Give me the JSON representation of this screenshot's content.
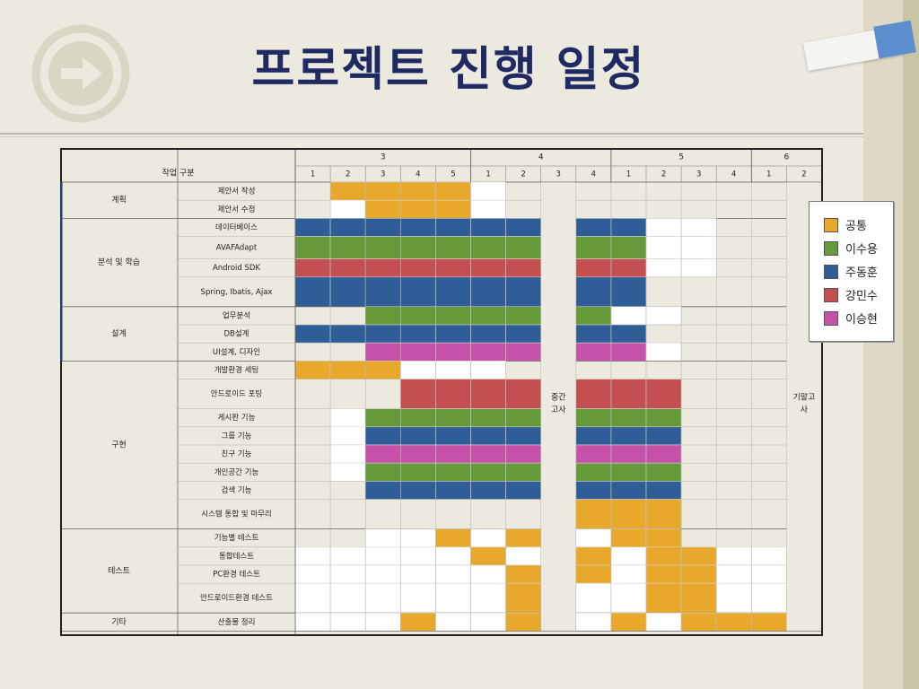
{
  "title": "프로젝트 진행 일정",
  "colors": {
    "공통": "#e8a82b",
    "이수용": "#66993a",
    "주동훈": "#2f5d97",
    "강민수": "#c44f51",
    "이승현": "#c552a8",
    "empty": "#ffffff",
    "header": "#ece9df"
  },
  "table": {
    "corner_header": "작업 구분",
    "months": [
      {
        "label": "3",
        "weeks": [
          "1",
          "2",
          "3",
          "4",
          "5"
        ]
      },
      {
        "label": "4",
        "weeks": [
          "1",
          "2",
          "3",
          "4"
        ]
      },
      {
        "label": "5",
        "weeks": [
          "1",
          "2",
          "3",
          "4"
        ]
      },
      {
        "label": "6",
        "weeks": [
          "1",
          "2"
        ]
      }
    ],
    "midterm_label": "중간\n고사",
    "final_label": "기말고\n사",
    "groups": [
      {
        "name": "계획",
        "tasks": [
          {
            "name": "제안서 작성",
            "cells": [
              "",
              "공통",
              "공통",
              "공통",
              "공통",
              "empty",
              "",
              null,
              "",
              "",
              "",
              "",
              "",
              "",
              null
            ]
          },
          {
            "name": "제안서 수정",
            "cells": [
              "",
              "empty",
              "공통",
              "공통",
              "공통",
              "empty",
              "",
              null,
              "",
              "",
              "",
              "",
              "",
              "",
              null
            ]
          }
        ]
      },
      {
        "name": "분석 및 학습",
        "tasks": [
          {
            "name": "데이터베이스",
            "cells": [
              "주동훈",
              "주동훈",
              "주동훈",
              "주동훈",
              "주동훈",
              "주동훈",
              "주동훈",
              null,
              "주동훈",
              "주동훈",
              "empty",
              "empty",
              "",
              "",
              null
            ]
          },
          {
            "name": "AVAFAdapt",
            "cells": [
              "이수용",
              "이수용",
              "이수용",
              "이수용",
              "이수용",
              "이수용",
              "이수용",
              null,
              "이수용",
              "이수용",
              "empty",
              "empty",
              "",
              "",
              null
            ]
          },
          {
            "name": "Android SDK",
            "cells": [
              "강민수",
              "강민수",
              "강민수",
              "강민수",
              "강민수",
              "강민수",
              "강민수",
              null,
              "강민수",
              "강민수",
              "empty",
              "empty",
              "",
              "",
              null
            ]
          },
          {
            "name": "Spring, Ibatis, Ajax",
            "cells": [
              "주동훈",
              "주동훈",
              "주동훈",
              "주동훈",
              "주동훈",
              "주동훈",
              "주동훈",
              null,
              "주동훈",
              "주동훈",
              "",
              "",
              "",
              "",
              null
            ]
          }
        ]
      },
      {
        "name": "설계",
        "tasks": [
          {
            "name": "업무분석",
            "cells": [
              "",
              "",
              "이수용",
              "이수용",
              "이수용",
              "이수용",
              "이수용",
              null,
              "이수용",
              "empty",
              "empty",
              "",
              "",
              "",
              null
            ]
          },
          {
            "name": "DB설계",
            "cells": [
              "주동훈",
              "주동훈",
              "주동훈",
              "주동훈",
              "주동훈",
              "주동훈",
              "주동훈",
              null,
              "주동훈",
              "주동훈",
              "",
              "",
              "",
              "",
              null
            ]
          },
          {
            "name": "UI설계, 디자인",
            "cells": [
              "",
              "",
              "이승현",
              "이승현",
              "이승현",
              "이승현",
              "이승현",
              null,
              "이승현",
              "이승현",
              "empty",
              "",
              "",
              "",
              null
            ]
          }
        ]
      },
      {
        "name": "구현",
        "tasks": [
          {
            "name": "개발환경 세팅",
            "cells": [
              "공통",
              "공통",
              "공통",
              "empty",
              "empty",
              "empty",
              "",
              null,
              "",
              "",
              "",
              "",
              "",
              "",
              null
            ]
          },
          {
            "name": "안드로이드 포팅",
            "cells": [
              "",
              "",
              "",
              "강민수",
              "강민수",
              "강민수",
              "강민수",
              null,
              "강민수",
              "강민수",
              "강민수",
              "",
              "",
              "",
              null
            ]
          },
          {
            "name": "게시판 기능",
            "cells": [
              "",
              "empty",
              "이수용",
              "이수용",
              "이수용",
              "이수용",
              "이수용",
              null,
              "이수용",
              "이수용",
              "이수용",
              "",
              "",
              "",
              null
            ]
          },
          {
            "name": "그룹 기능",
            "cells": [
              "",
              "empty",
              "주동훈",
              "주동훈",
              "주동훈",
              "주동훈",
              "주동훈",
              null,
              "주동훈",
              "주동훈",
              "주동훈",
              "",
              "",
              "",
              null
            ]
          },
          {
            "name": "친구 기능",
            "cells": [
              "",
              "empty",
              "이승현",
              "이승현",
              "이승현",
              "이승현",
              "이승현",
              null,
              "이승현",
              "이승현",
              "이승현",
              "",
              "",
              "",
              null
            ]
          },
          {
            "name": "개인공간 기능",
            "cells": [
              "",
              "empty",
              "이수용",
              "이수용",
              "이수용",
              "이수용",
              "이수용",
              null,
              "이수용",
              "이수용",
              "이수용",
              "",
              "",
              "",
              null
            ]
          },
          {
            "name": "검색 기능",
            "cells": [
              "",
              "",
              "주동훈",
              "주동훈",
              "주동훈",
              "주동훈",
              "주동훈",
              null,
              "주동훈",
              "주동훈",
              "주동훈",
              "",
              "",
              "",
              null
            ]
          },
          {
            "name": "시스템 통합 및 마무리",
            "cells": [
              "",
              "",
              "",
              "",
              "",
              "",
              "",
              null,
              "공통",
              "공통",
              "공통",
              "",
              "",
              "",
              null
            ]
          }
        ]
      },
      {
        "name": "테스트",
        "tasks": [
          {
            "name": "기능별 테스트",
            "cells": [
              "",
              "",
              "empty",
              "empty",
              "공통",
              "empty",
              "공통",
              null,
              "empty",
              "공통",
              "공통",
              "",
              "",
              "",
              null
            ]
          },
          {
            "name": "통합테스트",
            "cells": [
              "empty",
              "empty",
              "empty",
              "empty",
              "empty",
              "공통",
              "empty",
              null,
              "공통",
              "empty",
              "공통",
              "공통",
              "empty",
              "empty",
              null
            ]
          },
          {
            "name": "PC환경 테스트",
            "cells": [
              "empty",
              "empty",
              "empty",
              "empty",
              "empty",
              "empty",
              "공통",
              null,
              "공통",
              "empty",
              "공통",
              "공통",
              "empty",
              "empty",
              null
            ]
          },
          {
            "name": "안드로이드환경 테스트",
            "cells": [
              "empty",
              "empty",
              "empty",
              "empty",
              "empty",
              "empty",
              "공통",
              null,
              "empty",
              "empty",
              "공통",
              "공통",
              "empty",
              "empty",
              null
            ]
          }
        ]
      },
      {
        "name": "기타",
        "tasks": [
          {
            "name": "산출물 정리",
            "cells": [
              "empty",
              "empty",
              "empty",
              "공통",
              "empty",
              "empty",
              "공통",
              null,
              "empty",
              "공통",
              "empty",
              "공통",
              "공통",
              "공통",
              null
            ]
          }
        ]
      }
    ]
  },
  "legend": [
    {
      "label": "공통",
      "color": "#e8a82b"
    },
    {
      "label": "이수용",
      "color": "#66993a"
    },
    {
      "label": "주동훈",
      "color": "#2f5d97"
    },
    {
      "label": "강민수",
      "color": "#c44f51"
    },
    {
      "label": "이승현",
      "color": "#c552a8"
    }
  ]
}
